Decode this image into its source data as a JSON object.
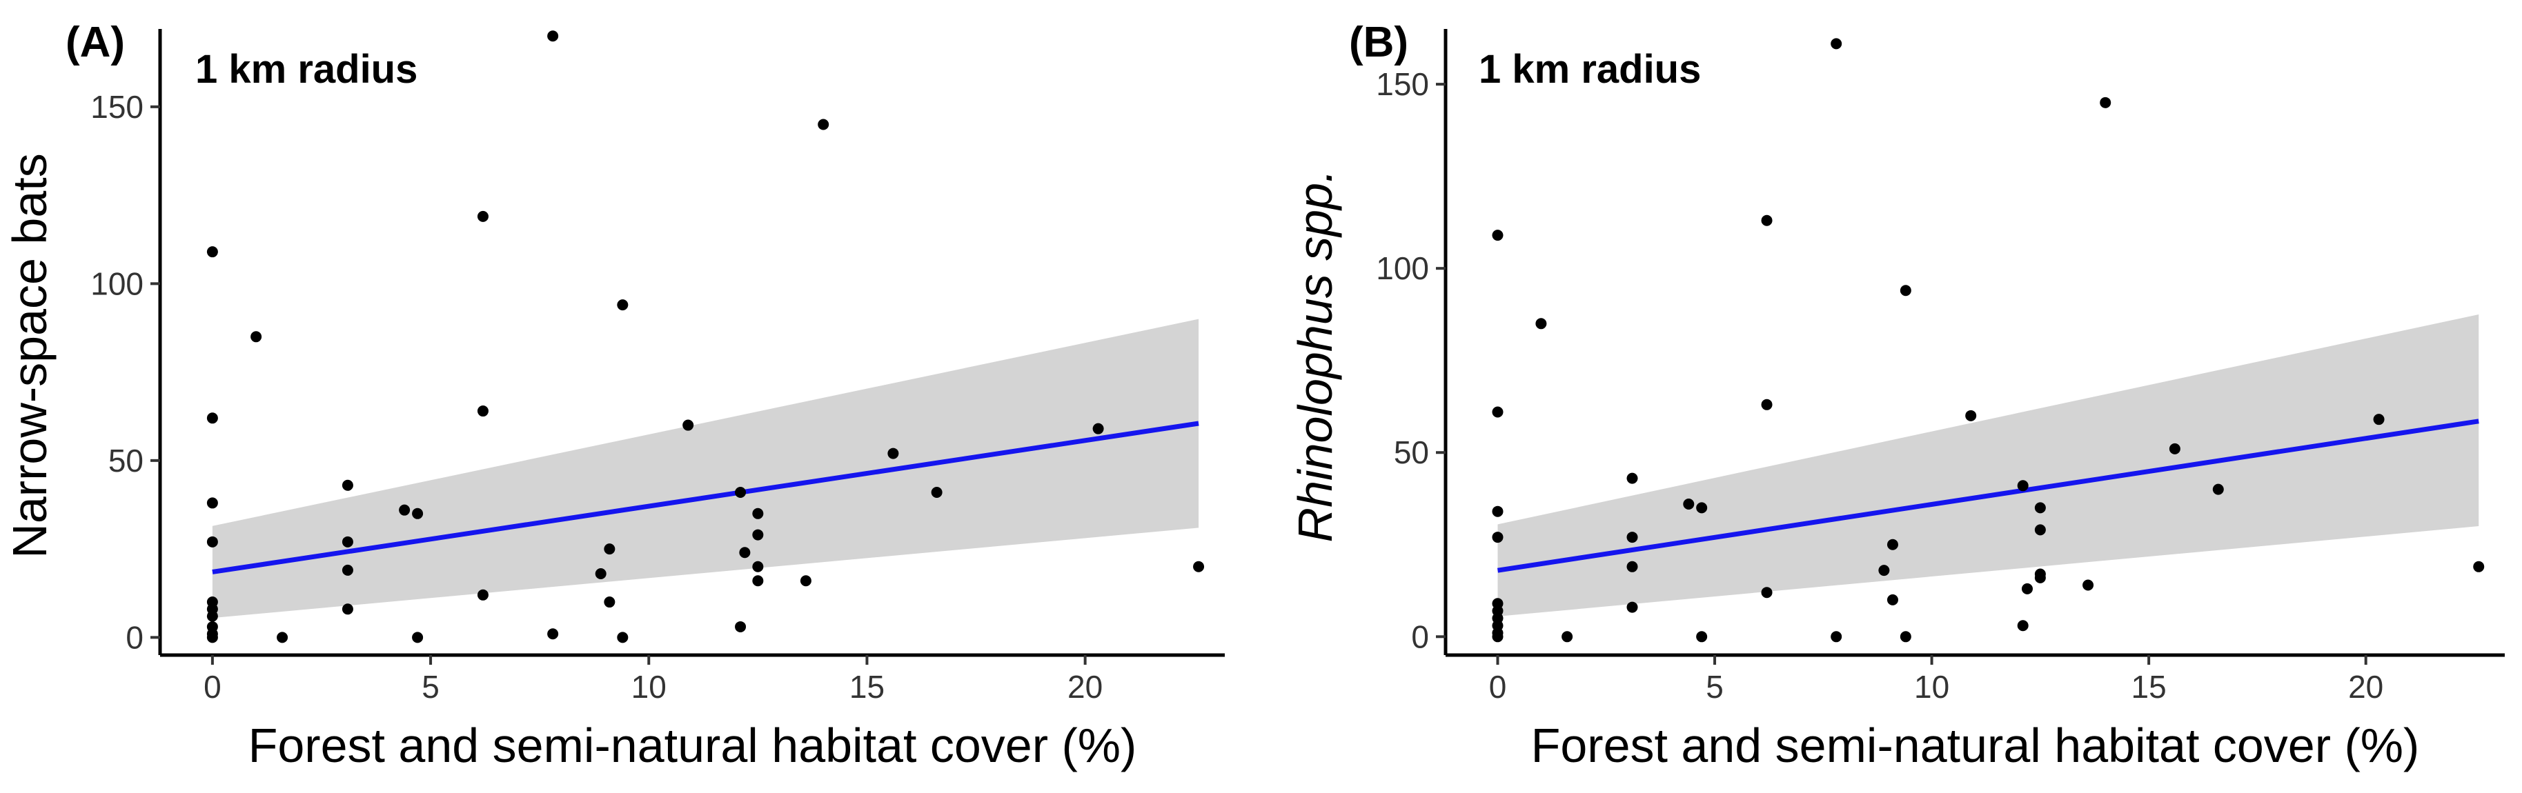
{
  "chart_data": [
    {
      "type": "scatter",
      "panel_label": "(A)",
      "annotation": "1 km radius",
      "xlabel": "Forest and semi-natural habitat cover (%)",
      "ylabel": "Narrow-space bats",
      "ylabel_italic": false,
      "xlim": [
        -1.2,
        23.2
      ],
      "ylim": [
        -5,
        172
      ],
      "xticks": [
        0,
        5,
        10,
        15,
        20
      ],
      "yticks": [
        0,
        50,
        100,
        150
      ],
      "grid": false,
      "points": [
        {
          "x": 0,
          "y": 109
        },
        {
          "x": 0,
          "y": 62
        },
        {
          "x": 0,
          "y": 38
        },
        {
          "x": 0,
          "y": 27
        },
        {
          "x": 0,
          "y": 10
        },
        {
          "x": 0,
          "y": 8
        },
        {
          "x": 0,
          "y": 6
        },
        {
          "x": 0,
          "y": 3
        },
        {
          "x": 0,
          "y": 1
        },
        {
          "x": 0,
          "y": 0
        },
        {
          "x": 1.0,
          "y": 85
        },
        {
          "x": 1.6,
          "y": 0
        },
        {
          "x": 3.1,
          "y": 43
        },
        {
          "x": 3.1,
          "y": 27
        },
        {
          "x": 3.1,
          "y": 19
        },
        {
          "x": 3.1,
          "y": 8
        },
        {
          "x": 4.4,
          "y": 36
        },
        {
          "x": 4.7,
          "y": 35
        },
        {
          "x": 4.7,
          "y": 0
        },
        {
          "x": 6.2,
          "y": 119
        },
        {
          "x": 6.2,
          "y": 64
        },
        {
          "x": 6.2,
          "y": 12
        },
        {
          "x": 7.8,
          "y": 170
        },
        {
          "x": 7.8,
          "y": 1
        },
        {
          "x": 8.9,
          "y": 18
        },
        {
          "x": 9.1,
          "y": 25
        },
        {
          "x": 9.1,
          "y": 10
        },
        {
          "x": 9.4,
          "y": 94
        },
        {
          "x": 9.4,
          "y": 0
        },
        {
          "x": 10.9,
          "y": 60
        },
        {
          "x": 12.1,
          "y": 41
        },
        {
          "x": 12.2,
          "y": 24
        },
        {
          "x": 12.1,
          "y": 3
        },
        {
          "x": 12.5,
          "y": 35
        },
        {
          "x": 12.5,
          "y": 29
        },
        {
          "x": 12.5,
          "y": 20
        },
        {
          "x": 12.5,
          "y": 16
        },
        {
          "x": 13.6,
          "y": 16
        },
        {
          "x": 14.0,
          "y": 145
        },
        {
          "x": 15.6,
          "y": 52
        },
        {
          "x": 16.6,
          "y": 41
        },
        {
          "x": 20.3,
          "y": 59
        },
        {
          "x": 22.6,
          "y": 20
        }
      ],
      "fit": {
        "x": [
          0,
          22.6
        ],
        "y": [
          18.5,
          60.5
        ],
        "color": "#1515ee"
      },
      "ci": {
        "x": [
          0,
          22.6
        ],
        "lower": [
          5.5,
          31
        ],
        "upper": [
          31.5,
          90
        ],
        "color": "#d4d4d4"
      }
    },
    {
      "type": "scatter",
      "panel_label": "(B)",
      "annotation": "1 km radius",
      "xlabel": "Forest and semi-natural habitat cover (%)",
      "ylabel": "Rhinolophus spp.",
      "ylabel_italic": true,
      "xlim": [
        -1.2,
        23.2
      ],
      "ylim": [
        -5,
        165
      ],
      "xticks": [
        0,
        5,
        10,
        15,
        20
      ],
      "yticks": [
        0,
        50,
        100,
        150
      ],
      "grid": false,
      "points": [
        {
          "x": 0,
          "y": 109
        },
        {
          "x": 0,
          "y": 61
        },
        {
          "x": 0,
          "y": 34
        },
        {
          "x": 0,
          "y": 27
        },
        {
          "x": 0,
          "y": 9
        },
        {
          "x": 0,
          "y": 7
        },
        {
          "x": 0,
          "y": 5
        },
        {
          "x": 0,
          "y": 3
        },
        {
          "x": 0,
          "y": 1
        },
        {
          "x": 0,
          "y": 0
        },
        {
          "x": 1.0,
          "y": 85
        },
        {
          "x": 1.6,
          "y": 0
        },
        {
          "x": 3.1,
          "y": 43
        },
        {
          "x": 3.1,
          "y": 27
        },
        {
          "x": 3.1,
          "y": 19
        },
        {
          "x": 3.1,
          "y": 8
        },
        {
          "x": 4.4,
          "y": 36
        },
        {
          "x": 4.7,
          "y": 35
        },
        {
          "x": 4.7,
          "y": 0
        },
        {
          "x": 6.2,
          "y": 113
        },
        {
          "x": 6.2,
          "y": 63
        },
        {
          "x": 6.2,
          "y": 12
        },
        {
          "x": 7.8,
          "y": 161
        },
        {
          "x": 7.8,
          "y": 0
        },
        {
          "x": 8.9,
          "y": 18
        },
        {
          "x": 9.1,
          "y": 25
        },
        {
          "x": 9.1,
          "y": 10
        },
        {
          "x": 9.4,
          "y": 94
        },
        {
          "x": 9.4,
          "y": 0
        },
        {
          "x": 10.9,
          "y": 60
        },
        {
          "x": 12.1,
          "y": 41
        },
        {
          "x": 12.2,
          "y": 13
        },
        {
          "x": 12.1,
          "y": 3
        },
        {
          "x": 12.5,
          "y": 35
        },
        {
          "x": 12.5,
          "y": 29
        },
        {
          "x": 12.5,
          "y": 17
        },
        {
          "x": 12.5,
          "y": 16
        },
        {
          "x": 13.6,
          "y": 14
        },
        {
          "x": 14.0,
          "y": 145
        },
        {
          "x": 15.6,
          "y": 51
        },
        {
          "x": 16.6,
          "y": 40
        },
        {
          "x": 20.3,
          "y": 59
        },
        {
          "x": 22.6,
          "y": 19
        }
      ],
      "fit": {
        "x": [
          0,
          22.6
        ],
        "y": [
          18,
          58.5
        ],
        "color": "#1515ee"
      },
      "ci": {
        "x": [
          0,
          22.6
        ],
        "lower": [
          5.5,
          30
        ],
        "upper": [
          30.5,
          87.5
        ],
        "color": "#d4d4d4"
      }
    }
  ]
}
